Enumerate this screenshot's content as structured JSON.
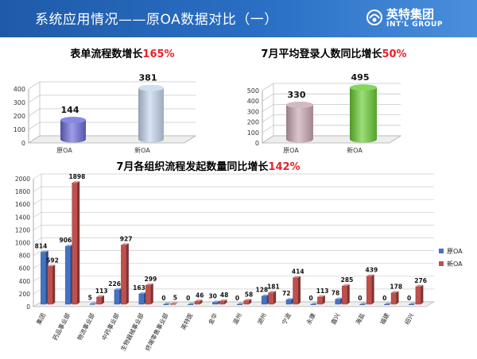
{
  "header": {
    "title": "系统应用情况——原OA数据对比（一）",
    "logo_zh": "英特集团",
    "logo_en": "INT'L GROUP"
  },
  "colors": {
    "header_bg": "#2a6fc4",
    "orig_oa": "#4472c4",
    "new_oa": "#c0504d",
    "highlight": "#e8222b"
  },
  "chart_data": [
    {
      "type": "bar",
      "title_prefix": "表单流程数增长",
      "title_highlight": "165%",
      "categories": [
        "原OA",
        "新OA"
      ],
      "values": [
        144,
        381
      ],
      "ylim": [
        0,
        400
      ],
      "yticks": [
        0,
        100,
        200,
        300,
        400
      ],
      "bar_colors": [
        "#6a6ad8",
        "#c4d6ee"
      ]
    },
    {
      "type": "bar",
      "title_prefix": "7月平均登录人数同比增长",
      "title_highlight": "50%",
      "categories": [
        "原OA",
        "新OA"
      ],
      "values": [
        330,
        495
      ],
      "ylim": [
        0,
        500
      ],
      "yticks": [
        0,
        100,
        200,
        300,
        400,
        500
      ],
      "bar_colors": [
        "#c9a7b3",
        "#66cc33"
      ]
    },
    {
      "type": "bar",
      "title_prefix": "7月各组织流程发起数量同比增长",
      "title_highlight": "142%",
      "categories": [
        "集团",
        "药品事业部",
        "物流事业部",
        "中药事业部",
        "生物器械事业部",
        "终端零售事业部",
        "英特医",
        "金华",
        "温州",
        "湖州",
        "宁波",
        "永康",
        "嘉兴",
        "海盐",
        "福建",
        "绍兴"
      ],
      "series": [
        {
          "name": "原OA",
          "values": [
            814,
            906,
            5,
            226,
            163,
            0,
            0,
            30,
            0,
            128,
            72,
            0,
            78,
            0,
            0,
            0
          ]
        },
        {
          "name": "新OA",
          "values": [
            592,
            1898,
            113,
            927,
            299,
            5,
            46,
            48,
            58,
            181,
            414,
            113,
            285,
            439,
            178,
            276
          ]
        }
      ],
      "ylim": [
        0,
        2000
      ],
      "yticks": [
        0,
        200,
        400,
        600,
        800,
        1000,
        1200,
        1400,
        1600,
        1800,
        2000
      ],
      "legend_position": "right"
    }
  ]
}
